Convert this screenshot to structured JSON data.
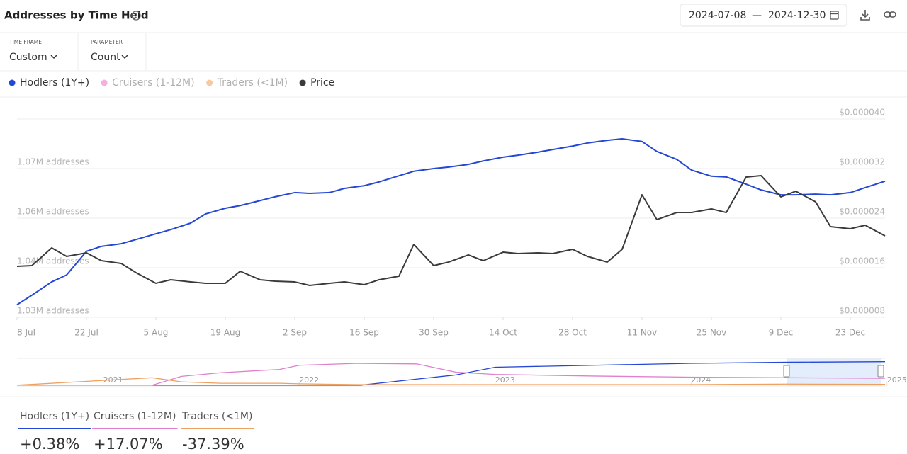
{
  "header": {
    "title": "Addresses by Time Held",
    "date_separator": "—"
  },
  "controls": [
    {
      "label": "TIME FRAME",
      "value": "Custom"
    },
    {
      "label": "PARAMETER",
      "value": "Count"
    }
  ],
  "hidden_series": [
    {
      "name": "Cruisers (1-12M)",
      "color": "#f4b0de"
    },
    {
      "name": "Traders (<1M)",
      "color": "#f8c9a0"
    }
  ],
  "summary": [
    {
      "name": "Hodlers (1Y+)",
      "change": "+0.38%",
      "color": "#2447d4"
    },
    {
      "name": "Cruisers (1-12M)",
      "change": "+17.07%",
      "color": "#e07fcf"
    },
    {
      "name": "Traders (<1M)",
      "change": "-37.39%",
      "color": "#eea060"
    }
  ],
  "chart_data": [
    {
      "type": "line",
      "x": [
        "2024-07-08",
        "2024-07-11",
        "2024-07-15",
        "2024-07-18",
        "2024-07-22",
        "2024-07-25",
        "2024-07-29",
        "2024-08-01",
        "2024-08-05",
        "2024-08-08",
        "2024-08-12",
        "2024-08-15",
        "2024-08-19",
        "2024-08-22",
        "2024-08-26",
        "2024-08-29",
        "2024-09-02",
        "2024-09-05",
        "2024-09-09",
        "2024-09-12",
        "2024-09-16",
        "2024-09-19",
        "2024-09-23",
        "2024-09-26",
        "2024-09-30",
        "2024-10-03",
        "2024-10-07",
        "2024-10-10",
        "2024-10-14",
        "2024-10-17",
        "2024-10-21",
        "2024-10-24",
        "2024-10-28",
        "2024-10-31",
        "2024-11-04",
        "2024-11-07",
        "2024-11-11",
        "2024-11-14",
        "2024-11-18",
        "2024-11-21",
        "2024-11-25",
        "2024-11-28",
        "2024-12-02",
        "2024-12-05",
        "2024-12-09",
        "2024-12-12",
        "2024-12-16",
        "2024-12-19",
        "2024-12-23",
        "2024-12-26",
        "2024-12-30"
      ],
      "xlim": [
        "2024-07-08",
        "2024-12-30"
      ],
      "xticks": [
        {
          "value": "2024-07-08",
          "label": "8 Jul"
        },
        {
          "value": "2024-07-22",
          "label": "22 Jul"
        },
        {
          "value": "2024-08-05",
          "label": "5 Aug"
        },
        {
          "value": "2024-08-19",
          "label": "19 Aug"
        },
        {
          "value": "2024-09-02",
          "label": "2 Sep"
        },
        {
          "value": "2024-09-16",
          "label": "16 Sep"
        },
        {
          "value": "2024-09-30",
          "label": "30 Sep"
        },
        {
          "value": "2024-10-14",
          "label": "14 Oct"
        },
        {
          "value": "2024-10-28",
          "label": "28 Oct"
        },
        {
          "value": "2024-11-11",
          "label": "11 Nov"
        },
        {
          "value": "2024-11-25",
          "label": "25 Nov"
        },
        {
          "value": "2024-12-09",
          "label": "9 Dec"
        },
        {
          "value": "2024-12-23",
          "label": "23 Dec"
        }
      ],
      "ylim": [
        1030000,
        1082000
      ],
      "yticks": [
        {
          "value": 1030000,
          "label": "1.03M addresses"
        },
        {
          "value": 1043000,
          "label": "1.04M addresses"
        },
        {
          "value": 1056000,
          "label": "1.06M addresses"
        },
        {
          "value": 1069000,
          "label": "1.07M addresses"
        }
      ],
      "y2lim": [
        8e-06,
        4e-05
      ],
      "y2ticks": [
        {
          "value": 8e-06,
          "label": "$0.000008"
        },
        {
          "value": 1.6e-05,
          "label": "$0.000016"
        },
        {
          "value": 2.4e-05,
          "label": "$0.000024"
        },
        {
          "value": 3.2e-05,
          "label": "$0.000032"
        },
        {
          "value": 4e-05,
          "label": "$0.000040"
        }
      ],
      "grid": true,
      "series": [
        {
          "name": "Hodlers (1Y+)",
          "color": "#2447d4",
          "values": [
            1033300,
            1035800,
            1039300,
            1041100,
            1047300,
            1048600,
            1049300,
            1050400,
            1051900,
            1053000,
            1054700,
            1057100,
            1058600,
            1059300,
            1060600,
            1061600,
            1062700,
            1062500,
            1062700,
            1063800,
            1064500,
            1065500,
            1067100,
            1068300,
            1069000,
            1069400,
            1070100,
            1071000,
            1072000,
            1072500,
            1073300,
            1074000,
            1074900,
            1075700,
            1076400,
            1076800,
            1076100,
            1073500,
            1071400,
            1068600,
            1067000,
            1066800,
            1064900,
            1063400,
            1062100,
            1062100,
            1062300,
            1062100,
            1062700,
            1064000,
            1065700
          ]
        },
        {
          "name": "Price",
          "color": "#3a3a3a",
          "axis": "y2",
          "values": [
            1.623e-05,
            1.634e-05,
            1.92e-05,
            1.783e-05,
            1.84e-05,
            1.714e-05,
            1.669e-05,
            1.52e-05,
            1.349e-05,
            1.406e-05,
            1.371e-05,
            1.349e-05,
            1.349e-05,
            1.543e-05,
            1.406e-05,
            1.383e-05,
            1.371e-05,
            1.314e-05,
            1.349e-05,
            1.371e-05,
            1.326e-05,
            1.406e-05,
            1.463e-05,
            1.977e-05,
            1.634e-05,
            1.691e-05,
            1.806e-05,
            1.714e-05,
            1.851e-05,
            1.829e-05,
            1.84e-05,
            1.829e-05,
            1.897e-05,
            1.783e-05,
            1.691e-05,
            1.897e-05,
            2.777e-05,
            2.377e-05,
            2.491e-05,
            2.491e-05,
            2.549e-05,
            2.491e-05,
            3.063e-05,
            3.086e-05,
            2.743e-05,
            2.834e-05,
            2.663e-05,
            2.263e-05,
            2.229e-05,
            2.286e-05,
            2.114e-05
          ]
        }
      ]
    },
    {
      "type": "line",
      "x": [
        2020.56,
        2021.25,
        2021.4,
        2021.6,
        2021.9,
        2022.0,
        2022.3,
        2022.6,
        2022.8,
        2023.0,
        2023.5,
        2024.0,
        2024.5,
        2024.99
      ],
      "xlim": [
        2020.56,
        2024.99
      ],
      "xticks": [
        2021,
        2022,
        2023,
        2024,
        2025
      ],
      "ylim": [
        0,
        100
      ],
      "series": [
        {
          "color": "#2447d4",
          "values": [
            2,
            2,
            2,
            2,
            2,
            2,
            2,
            25,
            40,
            68,
            75,
            82,
            86,
            88
          ]
        },
        {
          "color": "#e07fcf",
          "values": [
            2,
            3,
            35,
            48,
            60,
            75,
            82,
            80,
            50,
            42,
            36,
            32,
            30,
            28
          ]
        },
        {
          "color": "#eea060",
          "values": [
            3,
            30,
            15,
            10,
            10,
            8,
            5,
            5,
            5,
            5,
            5,
            5,
            7,
            6
          ]
        }
      ]
    }
  ]
}
